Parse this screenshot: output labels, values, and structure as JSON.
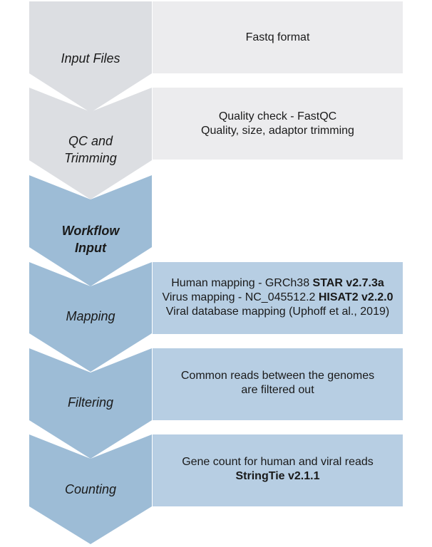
{
  "colors": {
    "gray_chevron": "#dcdee2",
    "gray_box": "#ececee",
    "blue_chevron": "#9dbcd6",
    "blue_box": "#b7cee3"
  },
  "steps": [
    {
      "label": "Input Files",
      "lines": [
        [
          "Fastq format"
        ]
      ]
    },
    {
      "label": "QC and\nTrimming",
      "lines": [
        [
          "Quality check - FastQC"
        ],
        [
          "Quality, size, adaptor trimming"
        ]
      ]
    },
    {
      "label": "Workflow\nInput",
      "lines": []
    },
    {
      "label": "Mapping",
      "lines": [
        [
          "Human mapping - GRCh38 ",
          "STAR v2.7.3a"
        ],
        [
          "Virus mapping - NC_045512.2 ",
          "HISAT2 v2.2.0"
        ],
        [
          "Viral database mapping (Uphoff et al., 2019)"
        ]
      ]
    },
    {
      "label": "Filtering",
      "lines": [
        [
          "Common reads between the genomes"
        ],
        [
          "are filtered out"
        ]
      ]
    },
    {
      "label": "Counting",
      "lines": [
        [
          "Gene count for human and viral reads"
        ],
        [
          "",
          "StringTie v2.1.1"
        ]
      ]
    }
  ]
}
